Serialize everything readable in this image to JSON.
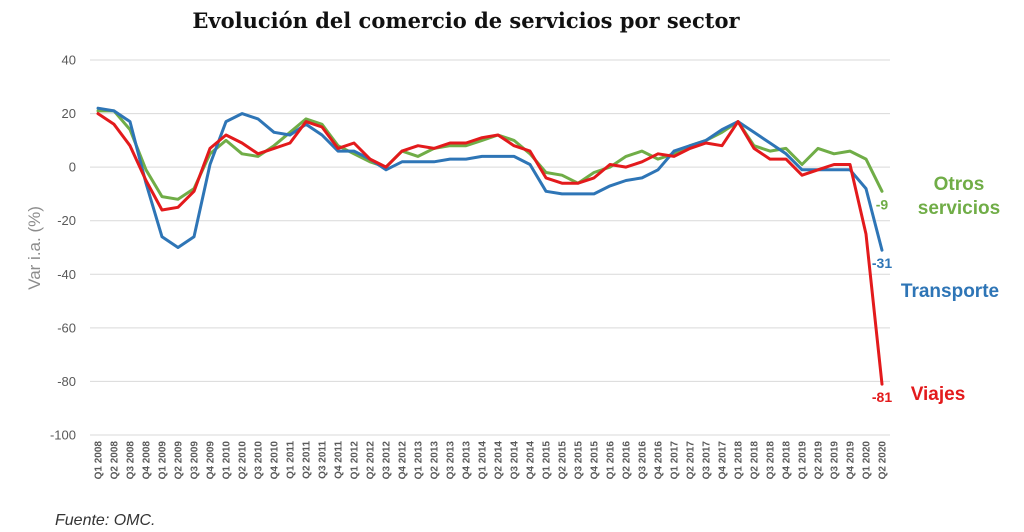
{
  "chart_data": {
    "type": "line",
    "title": "Evolución del comercio de servicios por sector",
    "ylabel": "Var i.a. (%)",
    "xlabel": "",
    "ylim": [
      -100,
      40
    ],
    "yticks": [
      40,
      20,
      0,
      -20,
      -40,
      -60,
      -80,
      -100
    ],
    "grid": true,
    "legend": "right",
    "categories": [
      "Q1 2008",
      "Q2 2008",
      "Q3 2008",
      "Q4 2008",
      "Q1 2009",
      "Q2 2009",
      "Q3 2009",
      "Q4 2009",
      "Q1 2010",
      "Q2 2010",
      "Q3 2010",
      "Q4 2010",
      "Q1 2011",
      "Q2 2011",
      "Q3 2011",
      "Q4 2011",
      "Q1 2012",
      "Q2 2012",
      "Q3 2012",
      "Q4 2012",
      "Q1 2013",
      "Q2 2013",
      "Q3 2013",
      "Q4 2013",
      "Q1 2014",
      "Q2 2014",
      "Q3 2014",
      "Q4 2014",
      "Q1 2015",
      "Q2 2015",
      "Q3 2015",
      "Q4 2015",
      "Q1 2016",
      "Q2 2016",
      "Q3 2016",
      "Q4 2016",
      "Q1 2017",
      "Q2 2017",
      "Q3 2017",
      "Q4 2017",
      "Q1 2018",
      "Q2 2018",
      "Q3 2018",
      "Q4 2018",
      "Q1 2019",
      "Q2 2019",
      "Q3 2019",
      "Q4 2019",
      "Q1 2020",
      "Q2 2020"
    ],
    "series": [
      {
        "name": "Otros\nservicios",
        "label_lines": [
          "Otros",
          "servicios"
        ],
        "color": "#70ad47",
        "end_label": "-9",
        "values": [
          21,
          21,
          14,
          -1,
          -11,
          -12,
          -8,
          5,
          10,
          5,
          4,
          8,
          13,
          18,
          16,
          8,
          5,
          2,
          0,
          6,
          4,
          7,
          8,
          8,
          10,
          12,
          10,
          5,
          -2,
          -3,
          -6,
          -2,
          0,
          4,
          6,
          3,
          5,
          8,
          10,
          13,
          17,
          8,
          6,
          7,
          1,
          7,
          5,
          6,
          3,
          -9
        ]
      },
      {
        "name": "Transporte",
        "label_lines": [
          "Transporte"
        ],
        "color": "#2e75b6",
        "end_label": "-31",
        "values": [
          22,
          21,
          17,
          -6,
          -26,
          -30,
          -26,
          1,
          17,
          20,
          18,
          13,
          12,
          16,
          12,
          6,
          6,
          3,
          -1,
          2,
          2,
          2,
          3,
          3,
          4,
          4,
          4,
          1,
          -9,
          -10,
          -10,
          -10,
          -7,
          -5,
          -4,
          -1,
          6,
          8,
          10,
          14,
          17,
          13,
          9,
          5,
          -1,
          -1,
          -1,
          -1,
          -8,
          -31
        ]
      },
      {
        "name": "Viajes",
        "label_lines": [
          "Viajes"
        ],
        "color": "#e31a1c",
        "end_label": "-81",
        "values": [
          20,
          16,
          8,
          -5,
          -16,
          -15,
          -9,
          7,
          12,
          9,
          5,
          7,
          9,
          17,
          15,
          7,
          9,
          3,
          0,
          6,
          8,
          7,
          9,
          9,
          11,
          12,
          8,
          6,
          -4,
          -6,
          -6,
          -4,
          1,
          0,
          2,
          5,
          4,
          7,
          9,
          8,
          17,
          7,
          3,
          3,
          -3,
          -1,
          1,
          1,
          -25,
          -81
        ]
      }
    ]
  },
  "source": "Fuente: OMC."
}
